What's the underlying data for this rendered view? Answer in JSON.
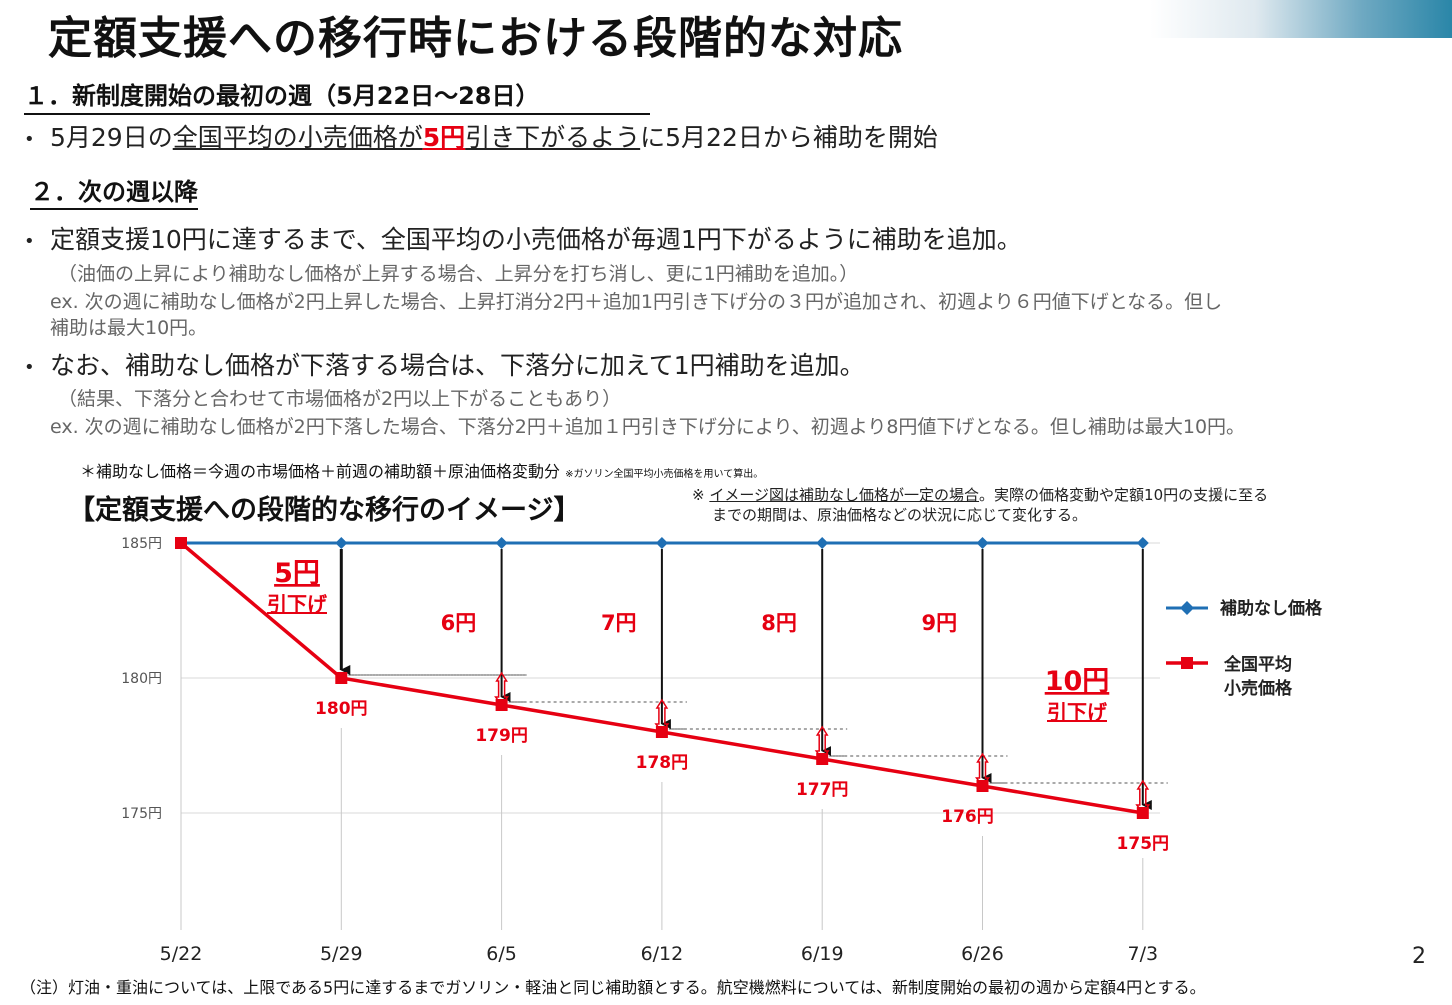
{
  "title": "定額支援への移行時における段階的な対応",
  "page_number": "2",
  "section1": {
    "heading": "１．新制度開始の最初の週（5月22日～28日）",
    "bullet": {
      "t1": "5月29日の",
      "t2": "全国平均の小売価格が",
      "t3": "5円",
      "t4": "引き下がるよう",
      "t5": "に5月22日から補助を開始"
    }
  },
  "section2": {
    "heading": "２．次の週以降",
    "bullet1": "定額支援10円に達するまで、全国平均の小売価格が毎週1円下がるように補助を追加。",
    "bullet1_sub1": "（油価の上昇により補助なし価格が上昇する場合、上昇分を打ち消し、更に1円補助を追加。）",
    "bullet1_sub2": "ex. 次の週に補助なし価格が2円上昇した場合、上昇打消分2円＋追加1円引き下げ分の３円が追加され、初週より６円値下げとなる。但し",
    "bullet1_sub3": "補助は最大10円。",
    "bullet2": "なお、補助なし価格が下落する場合は、下落分に加えて1円補助を追加。",
    "bullet2_sub1": "（結果、下落分と合わせて市場価格が2円以上下がることもあり）",
    "bullet2_sub2": "ex. 次の週に補助なし価格が2円下落した場合、下落分2円＋追加１円引き下げ分により、初週より8円値下げとなる。但し補助は最大10円。"
  },
  "formula": "＊補助なし価格＝今週の市場価格＋前週の補助額＋原油価格変動分",
  "formula_note": "※ガソリン全国平均小売価格を用いて算出。",
  "chart_title": "【定額支援への段階的な移行のイメージ】",
  "chart_note_prefix": "※ ",
  "chart_note_underlined": "イメージ図は補助なし価格が一定の場合",
  "chart_note_rest": "。実際の価格変動や定額10円の支援に至る",
  "chart_note_line2": "までの期間は、原油価格などの状況に応じて変化する。",
  "footer": "（注）灯油・重油については、上限である5円に達するまでガソリン・軽油と同じ補助額とする。航空機燃料については、新制度開始の最初の週から定額4円とする。",
  "colors": {
    "blue_series": "#1f6fb4",
    "red_series": "#e60012"
  },
  "chart_data": {
    "type": "line",
    "categories": [
      "5/22",
      "5/29",
      "6/5",
      "6/12",
      "6/19",
      "6/26",
      "7/3"
    ],
    "series": [
      {
        "name": "補助なし価格",
        "values": [
          185,
          185,
          185,
          185,
          185,
          185,
          185
        ],
        "color": "#1f6fb4",
        "marker": "diamond"
      },
      {
        "name": "全国平均\n小売価格",
        "values": [
          185,
          180,
          179,
          178,
          177,
          176,
          175
        ],
        "color": "#e60012",
        "marker": "square"
      }
    ],
    "yticks": [
      "175円",
      "180円",
      "185円"
    ],
    "ylim": [
      175,
      185
    ],
    "data_labels": [
      "180円",
      "179円",
      "178円",
      "177円",
      "176円",
      "175円"
    ],
    "gap_labels": [
      "6円",
      "7円",
      "8円",
      "9円"
    ],
    "annotations": [
      {
        "amount": "5円",
        "text": "引下げ"
      },
      {
        "amount": "10円",
        "text": "引下げ"
      }
    ],
    "legend": [
      "補助なし価格",
      "全国平均",
      "小売価格"
    ],
    "legend_position": "right",
    "grid": true
  }
}
